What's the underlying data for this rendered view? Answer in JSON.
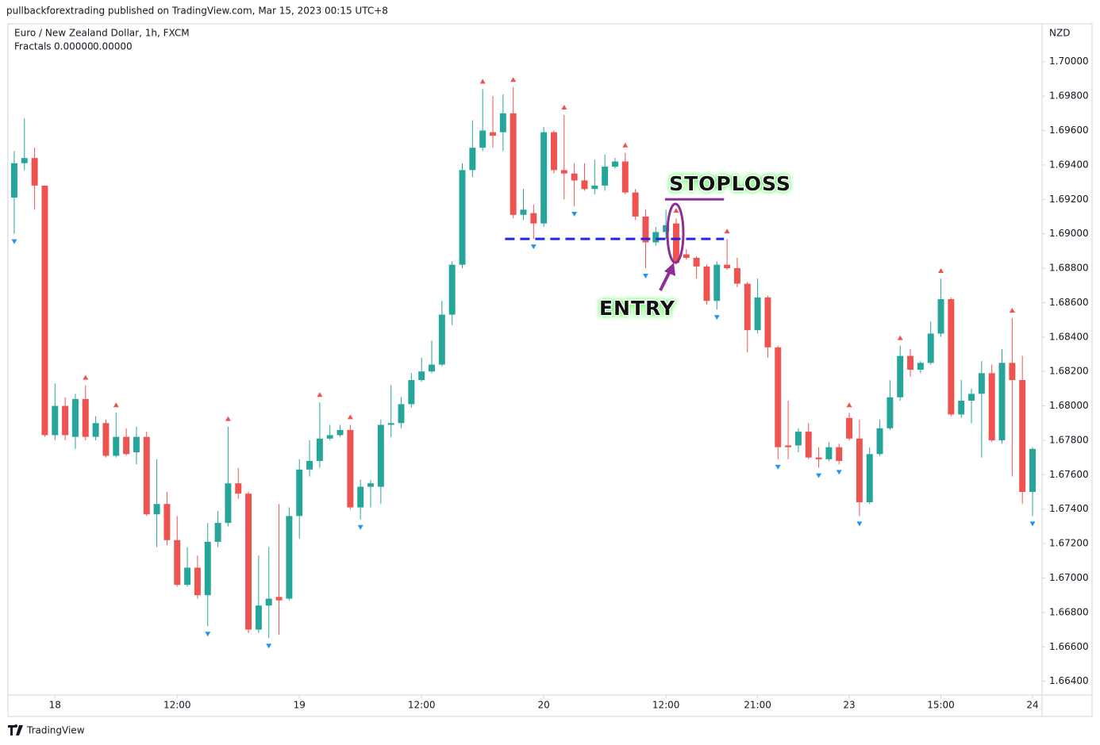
{
  "header": {
    "published": "pullbackforextrading published on TradingView.com, Mar 15, 2023 00:15 UTC+8",
    "brand": "TradingView"
  },
  "chart_data": {
    "type": "candlestick",
    "title": "Euro / New Zealand Dollar, 1h, FXCM",
    "indicator": {
      "name": "Fractals",
      "up_value": "0.00000",
      "down_value": "0.00000",
      "up_color": "#ef5350",
      "down_color": "#2196f3"
    },
    "y_axis_label": "NZD",
    "up_color": "#26a69a",
    "down_color": "#ef5350",
    "grid": false,
    "x": [
      0,
      1,
      2,
      3,
      4,
      5,
      6,
      7,
      8,
      9,
      10,
      11,
      12,
      13,
      14,
      15,
      16,
      17,
      18,
      19,
      20,
      21,
      22,
      23,
      24,
      25,
      26,
      27,
      28,
      29,
      30,
      31,
      32,
      33,
      34,
      35,
      36,
      37,
      38,
      39,
      40,
      41,
      42,
      43,
      44,
      45,
      46,
      47,
      48,
      49,
      50,
      51,
      52,
      53,
      54,
      55,
      56,
      57,
      58,
      59,
      60,
      61,
      62,
      63,
      64,
      65,
      66,
      67,
      68,
      69,
      70,
      71,
      72,
      73,
      74,
      75,
      76,
      77,
      78,
      79,
      80,
      81,
      82,
      83,
      84,
      85,
      86,
      87,
      88,
      89,
      90,
      91,
      92,
      93,
      94,
      95,
      96,
      97,
      98,
      99,
      100
    ],
    "open": [
      1.6921,
      1.6941,
      1.6944,
      1.6928,
      1.6783,
      1.68,
      1.6782,
      1.6804,
      1.6782,
      1.679,
      1.6771,
      1.6782,
      1.6773,
      1.6782,
      1.6737,
      1.6743,
      1.6722,
      1.6696,
      1.6706,
      1.669,
      1.6721,
      1.6732,
      1.6755,
      1.6749,
      1.667,
      1.6684,
      1.6689,
      1.6688,
      1.6736,
      1.6763,
      1.6768,
      1.6781,
      1.6783,
      1.6786,
      1.6741,
      1.6753,
      1.6753,
      1.6789,
      1.679,
      1.6801,
      1.6815,
      1.682,
      1.6824,
      1.6853,
      1.6882,
      1.6937,
      1.695,
      1.6959,
      1.6959,
      1.697,
      1.6911,
      1.6912,
      1.6906,
      1.6959,
      1.6937,
      1.6935,
      1.6931,
      1.6926,
      1.6928,
      1.6939,
      1.6942,
      1.6924,
      1.691,
      1.6895,
      1.6901,
      1.6906,
      1.6888,
      1.6886,
      1.6881,
      1.6861,
      1.6882,
      1.688,
      1.6871,
      1.6844,
      1.6863,
      1.6834,
      1.6777,
      1.6777,
      1.6785,
      1.677,
      1.6769,
      1.6776,
      1.6793,
      1.6781,
      1.6744,
      1.6772,
      1.6787,
      1.6805,
      1.6829,
      1.6821,
      1.6825,
      1.6842,
      1.6862,
      1.6795,
      1.6803,
      1.6807,
      1.6819,
      1.678,
      1.6825,
      1.6815,
      1.675
    ],
    "high": [
      1.6948,
      1.6967,
      1.695,
      1.6928,
      1.6813,
      1.6805,
      1.6807,
      1.6812,
      1.6794,
      1.6792,
      1.6796,
      1.6787,
      1.6788,
      1.6785,
      1.6769,
      1.675,
      1.6736,
      1.6718,
      1.6713,
      1.6732,
      1.6739,
      1.6788,
      1.6764,
      1.675,
      1.6713,
      1.6718,
      1.6743,
      1.6741,
      1.6769,
      1.678,
      1.6802,
      1.6789,
      1.6789,
      1.6789,
      1.6757,
      1.6757,
      1.6792,
      1.6812,
      1.6805,
      1.6819,
      1.6828,
      1.6838,
      1.6861,
      1.6884,
      1.6941,
      1.6966,
      1.6984,
      1.698,
      1.6981,
      1.6985,
      1.6926,
      1.6917,
      1.6962,
      1.696,
      1.6969,
      1.6941,
      1.6941,
      1.6943,
      1.6946,
      1.6944,
      1.6947,
      1.6926,
      1.6914,
      1.6904,
      1.6914,
      1.6909,
      1.6891,
      1.6887,
      1.6882,
      1.6884,
      1.6897,
      1.6886,
      1.6872,
      1.6874,
      1.6864,
      1.6835,
      1.6803,
      1.6787,
      1.679,
      1.6776,
      1.6779,
      1.6778,
      1.6796,
      1.6792,
      1.6776,
      1.6792,
      1.6815,
      1.6835,
      1.6833,
      1.6826,
      1.6849,
      1.6874,
      1.6863,
      1.6815,
      1.681,
      1.6826,
      1.6824,
      1.6833,
      1.6851,
      1.6829,
      1.6776
    ],
    "low": [
      1.69,
      1.6937,
      1.6914,
      1.6782,
      1.678,
      1.678,
      1.6775,
      1.678,
      1.678,
      1.677,
      1.677,
      1.6771,
      1.6766,
      1.6736,
      1.6718,
      1.6719,
      1.6695,
      1.6695,
      1.6688,
      1.6672,
      1.6718,
      1.673,
      1.6746,
      1.6668,
      1.6668,
      1.6665,
      1.6667,
      1.6687,
      1.6723,
      1.6759,
      1.6764,
      1.678,
      1.6782,
      1.674,
      1.6734,
      1.6741,
      1.6743,
      1.6782,
      1.6787,
      1.6799,
      1.6814,
      1.6819,
      1.6823,
      1.6847,
      1.688,
      1.6933,
      1.6948,
      1.695,
      1.6948,
      1.6909,
      1.6908,
      1.6897,
      1.6904,
      1.6935,
      1.692,
      1.6916,
      1.6925,
      1.6923,
      1.6925,
      1.6938,
      1.6923,
      1.6908,
      1.688,
      1.6893,
      1.6897,
      1.6882,
      1.6885,
      1.6874,
      1.6859,
      1.6856,
      1.6879,
      1.6869,
      1.6831,
      1.6842,
      1.6828,
      1.6769,
      1.6769,
      1.6773,
      1.6769,
      1.6764,
      1.6768,
      1.6766,
      1.678,
      1.6736,
      1.6743,
      1.6771,
      1.6786,
      1.6803,
      1.6817,
      1.6819,
      1.6824,
      1.684,
      1.6794,
      1.6793,
      1.679,
      1.677,
      1.6779,
      1.6778,
      1.6759,
      1.6743,
      1.6736
    ],
    "close": [
      1.6941,
      1.6944,
      1.6928,
      1.6783,
      1.68,
      1.6783,
      1.6804,
      1.6782,
      1.679,
      1.6771,
      1.6782,
      1.6772,
      1.6782,
      1.6737,
      1.6743,
      1.6722,
      1.6696,
      1.6706,
      1.669,
      1.6721,
      1.6732,
      1.6755,
      1.6749,
      1.667,
      1.6684,
      1.6688,
      1.6687,
      1.6736,
      1.6763,
      1.6768,
      1.6781,
      1.6783,
      1.6786,
      1.6741,
      1.6753,
      1.6755,
      1.6789,
      1.679,
      1.6801,
      1.6815,
      1.682,
      1.6824,
      1.6853,
      1.6882,
      1.6937,
      1.695,
      1.696,
      1.6957,
      1.697,
      1.6911,
      1.6914,
      1.6906,
      1.6959,
      1.6937,
      1.6935,
      1.6931,
      1.6926,
      1.6928,
      1.6939,
      1.6942,
      1.6924,
      1.691,
      1.6895,
      1.6901,
      1.6905,
      1.6883,
      1.6886,
      1.6881,
      1.6861,
      1.6882,
      1.688,
      1.6871,
      1.6844,
      1.6863,
      1.6834,
      1.6776,
      1.6776,
      1.6785,
      1.677,
      1.6769,
      1.6776,
      1.6768,
      1.6781,
      1.6744,
      1.6772,
      1.6787,
      1.6805,
      1.6829,
      1.6821,
      1.6825,
      1.6842,
      1.6862,
      1.6795,
      1.6803,
      1.6807,
      1.6819,
      1.678,
      1.6825,
      1.6815,
      1.675,
      1.6775
    ],
    "fractal_up": [
      7,
      10,
      21,
      30,
      33,
      46,
      49,
      54,
      60,
      65,
      70,
      82,
      87,
      91,
      98
    ],
    "fractal_down": [
      0,
      19,
      25,
      34,
      51,
      55,
      62,
      69,
      75,
      79,
      81,
      83,
      100
    ],
    "xlim": [
      -0.62,
      100.7
    ],
    "xticks": [
      {
        "value": 4,
        "label": "18"
      },
      {
        "value": 16,
        "label": "12:00"
      },
      {
        "value": 28,
        "label": "19"
      },
      {
        "value": 40,
        "label": "12:00"
      },
      {
        "value": 52,
        "label": "20"
      },
      {
        "value": 64,
        "label": "12:00"
      },
      {
        "value": 73,
        "label": "21:00"
      },
      {
        "value": 82,
        "label": "23"
      },
      {
        "value": 91,
        "label": "15:00"
      },
      {
        "value": 100,
        "label": "24"
      }
    ],
    "ylim": [
      1.6632,
      1.7022
    ],
    "yticks": [
      {
        "value": 1.664,
        "label": "1.66400"
      },
      {
        "value": 1.666,
        "label": "1.66600"
      },
      {
        "value": 1.668,
        "label": "1.66800"
      },
      {
        "value": 1.67,
        "label": "1.67000"
      },
      {
        "value": 1.672,
        "label": "1.67200"
      },
      {
        "value": 1.674,
        "label": "1.67400"
      },
      {
        "value": 1.676,
        "label": "1.67600"
      },
      {
        "value": 1.678,
        "label": "1.67800"
      },
      {
        "value": 1.68,
        "label": "1.68000"
      },
      {
        "value": 1.682,
        "label": "1.68200"
      },
      {
        "value": 1.684,
        "label": "1.68400"
      },
      {
        "value": 1.686,
        "label": "1.68600"
      },
      {
        "value": 1.688,
        "label": "1.68800"
      },
      {
        "value": 1.69,
        "label": "1.69000"
      },
      {
        "value": 1.692,
        "label": "1.69200"
      },
      {
        "value": 1.694,
        "label": "1.69400"
      },
      {
        "value": 1.696,
        "label": "1.69600"
      },
      {
        "value": 1.698,
        "label": "1.69800"
      },
      {
        "value": 1.7,
        "label": "1.70000"
      }
    ],
    "entry_level": 1.6897,
    "entry_range": [
      48.2,
      69.7
    ],
    "entry_color": "#2424e8",
    "stoploss_level": 1.692,
    "stoploss_range": [
      63.9,
      69.7
    ],
    "stoploss_color": "#8e2c9a",
    "annotations": {
      "stoploss": "STOPLOSS",
      "entry": "ENTRY"
    }
  }
}
